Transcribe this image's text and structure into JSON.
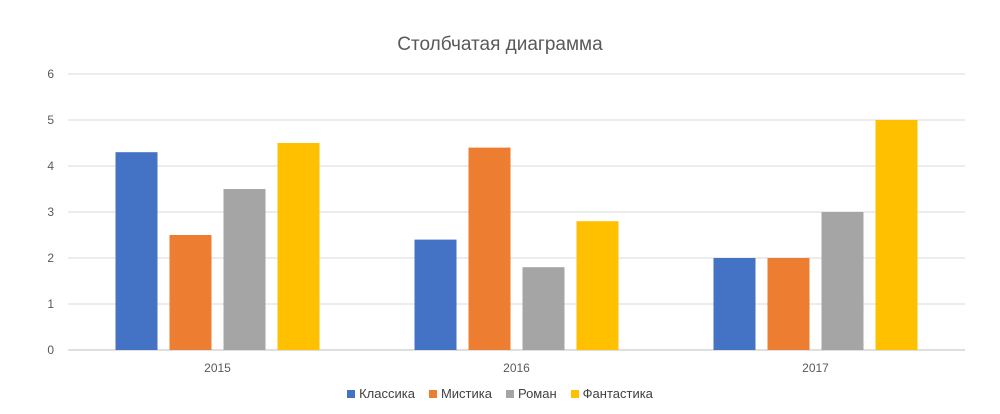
{
  "chart_data": {
    "type": "bar",
    "title": "Столбчатая диаграмма",
    "categories": [
      "2015",
      "2016",
      "2017"
    ],
    "series": [
      {
        "name": "Классика",
        "color": "#4472C4",
        "values": [
          4.3,
          2.4,
          2.0
        ]
      },
      {
        "name": "Мистика",
        "color": "#ED7D31",
        "values": [
          2.5,
          4.4,
          2.0
        ]
      },
      {
        "name": "Роман",
        "color": "#A5A5A5",
        "values": [
          3.5,
          1.8,
          3.0
        ]
      },
      {
        "name": "Фантастика",
        "color": "#FFC000",
        "values": [
          4.5,
          2.8,
          5.0
        ]
      }
    ],
    "ylim": [
      0,
      6
    ],
    "yticks": [
      "0",
      "1",
      "2",
      "3",
      "4",
      "5",
      "6"
    ],
    "grid": true,
    "legend_position": "bottom"
  }
}
